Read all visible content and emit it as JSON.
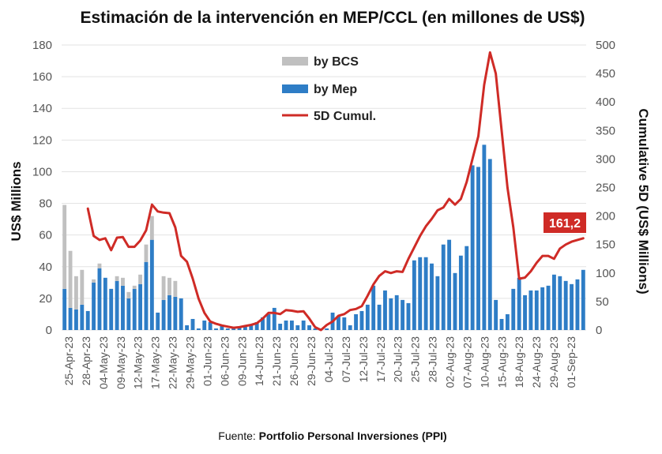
{
  "chart_data": {
    "type": "bar",
    "title": "Estimación de la intervención en MEP/CCL (en millones de US$)",
    "ylabel": "US$ Millions",
    "y2label": "Cumulative 5D (US$ Millions)",
    "ylim": [
      0,
      180
    ],
    "y2lim": [
      0,
      500
    ],
    "yticks": [
      0,
      20,
      40,
      60,
      80,
      100,
      120,
      140,
      160,
      180
    ],
    "y2ticks": [
      0,
      50,
      100,
      150,
      200,
      250,
      300,
      350,
      400,
      450,
      500
    ],
    "grid": true,
    "legend": [
      "by BCS",
      "by Mep",
      "5D Cumul."
    ],
    "legend_position": "top-center",
    "colors": {
      "bcs": "#c0c0c0",
      "mep": "#2e7dc6",
      "cumul": "#cf2b26",
      "annotation": "#cf2b26"
    },
    "xtick_labels": [
      "25-Apr-23",
      "28-Apr-23",
      "04-May-23",
      "09-May-23",
      "12-May-23",
      "17-May-23",
      "22-May-23",
      "29-May-23",
      "01-Jun-23",
      "06-Jun-23",
      "09-Jun-23",
      "14-Jun-23",
      "21-Jun-23",
      "26-Jun-23",
      "29-Jun-23",
      "04-Jul-23",
      "07-Jul-23",
      "12-Jul-23",
      "17-Jul-23",
      "20-Jul-23",
      "25-Jul-23",
      "28-Jul-23",
      "02-Aug-23",
      "07-Aug-23",
      "10-Aug-23",
      "15-Aug-23",
      "18-Aug-23",
      "24-Aug-23",
      "29-Aug-23",
      "01-Sep-23"
    ],
    "series": [
      {
        "name": "by Mep",
        "axis": "left",
        "values": [
          26,
          14,
          13,
          16,
          12,
          30,
          39,
          33,
          26,
          31,
          28,
          20,
          26,
          29,
          43,
          57,
          11,
          19,
          22,
          21,
          20,
          3,
          7,
          1,
          6,
          5,
          1,
          3,
          1,
          1,
          2,
          2,
          3,
          5,
          8,
          10,
          14,
          4,
          6,
          6,
          3,
          6,
          3,
          1,
          0,
          1,
          11,
          9,
          8,
          3,
          10,
          12,
          16,
          28,
          16,
          25,
          20,
          22,
          19,
          17,
          44,
          46,
          46,
          42,
          34,
          54,
          57,
          36,
          47,
          53,
          104,
          103,
          117,
          108,
          19,
          7,
          10,
          26,
          33,
          22,
          25,
          25,
          27,
          28,
          35,
          34,
          31,
          29,
          32,
          38
        ]
      },
      {
        "name": "by BCS",
        "axis": "left",
        "values": [
          53,
          36,
          21,
          22,
          0,
          2,
          3,
          0,
          0,
          3,
          5,
          4,
          2,
          6,
          11,
          15,
          0,
          15,
          11,
          10,
          0,
          0,
          0,
          0,
          0,
          0,
          0,
          0,
          0,
          0,
          0,
          0,
          0,
          0,
          0,
          0,
          0,
          0,
          0,
          0,
          0,
          0,
          0,
          0,
          0,
          0,
          0,
          0,
          0,
          0,
          0,
          0,
          0,
          0,
          0,
          0,
          0,
          0,
          0,
          0,
          0,
          0,
          0,
          0,
          0,
          0,
          0,
          0,
          0,
          0,
          0,
          0,
          0,
          0,
          0,
          0,
          0,
          0,
          0,
          0,
          0,
          0,
          0,
          0,
          0,
          0,
          0,
          0,
          0,
          0
        ]
      },
      {
        "name": "5D Cumul.",
        "axis": "right",
        "values": [
          null,
          null,
          null,
          null,
          213,
          165,
          158,
          161,
          140,
          162,
          163,
          146,
          146,
          157,
          175,
          220,
          208,
          206,
          205,
          180,
          130,
          120,
          90,
          55,
          30,
          15,
          11,
          8,
          6,
          4,
          5,
          7,
          9,
          12,
          20,
          30,
          30,
          28,
          35,
          34,
          32,
          33,
          20,
          5,
          0,
          9,
          15,
          25,
          28,
          35,
          37,
          42,
          60,
          80,
          95,
          103,
          100,
          103,
          102,
          125,
          145,
          165,
          182,
          195,
          210,
          215,
          230,
          220,
          230,
          260,
          300,
          340,
          430,
          487,
          450,
          350,
          250,
          180,
          90,
          92,
          103,
          118,
          130,
          130,
          125,
          143,
          150,
          155,
          158,
          161
        ]
      }
    ],
    "annotation": {
      "text": "161,2",
      "value": 161.2
    },
    "source_prefix": "Fuente: ",
    "source_bold": "Portfolio Personal Inversiones (PPI)"
  }
}
